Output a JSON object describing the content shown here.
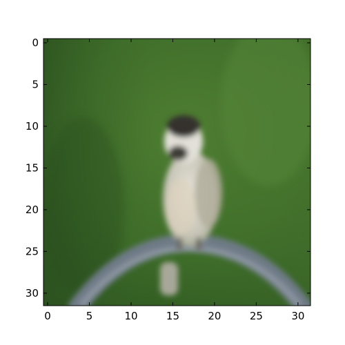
{
  "image": {
    "description_icon": "blurred-bird-photo",
    "x_ticks": [
      "0",
      "5",
      "10",
      "15",
      "20",
      "25",
      "30"
    ],
    "y_ticks": [
      "0",
      "5",
      "10",
      "15",
      "20",
      "25",
      "30"
    ],
    "x_range": [
      -0.5,
      31.5
    ],
    "y_range": [
      -0.5,
      31.5
    ],
    "colors": {
      "background_dark": "#2f5a22",
      "background_light": "#5b8a3a",
      "bird_body": "#d8d6cc",
      "bird_head": "#3a3a36",
      "perch": "#7c8796"
    }
  }
}
